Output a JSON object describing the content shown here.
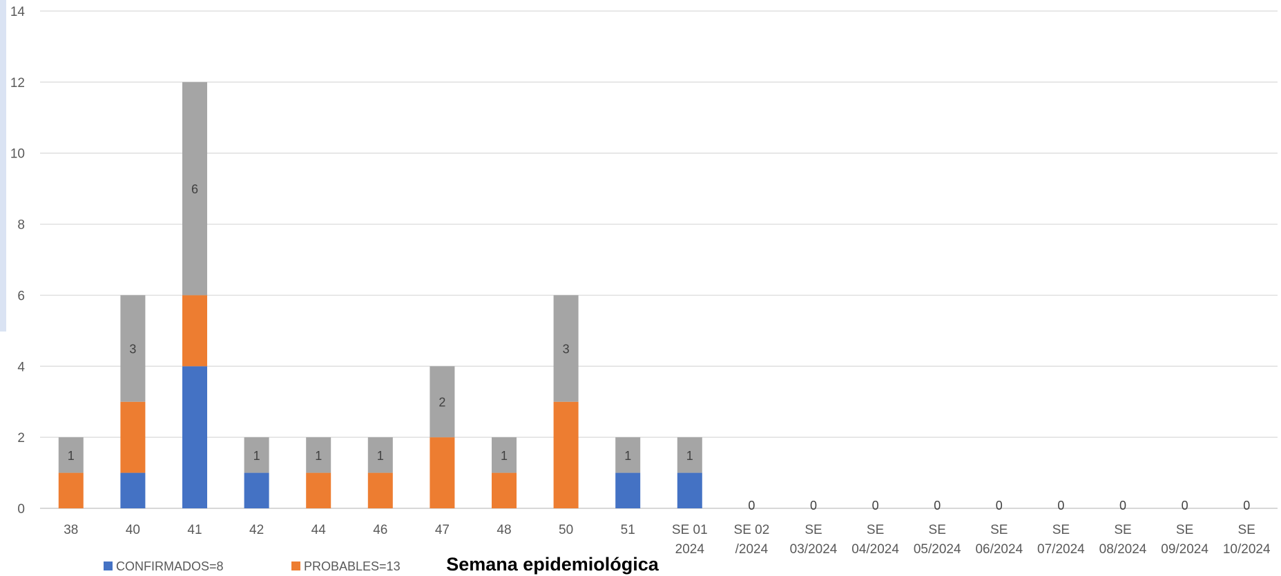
{
  "chart_data": {
    "type": "bar",
    "stacked": true,
    "xlabel": "Semana epidemiológica",
    "ylim": [
      0,
      14
    ],
    "yticks": [
      0,
      2,
      4,
      6,
      8,
      10,
      12,
      14
    ],
    "grid": true,
    "legend_position": "bottom-left",
    "categories": [
      [
        "38"
      ],
      [
        "40"
      ],
      [
        "41"
      ],
      [
        "42"
      ],
      [
        "44"
      ],
      [
        "46"
      ],
      [
        "47"
      ],
      [
        "48"
      ],
      [
        "50"
      ],
      [
        "51"
      ],
      [
        "SE 01",
        "2024"
      ],
      [
        "SE 02",
        "/2024"
      ],
      [
        "SE",
        "03/2024"
      ],
      [
        "SE",
        "04/2024"
      ],
      [
        "SE",
        "05/2024"
      ],
      [
        "SE",
        "06/2024"
      ],
      [
        "SE",
        "07/2024"
      ],
      [
        "SE",
        "08/2024"
      ],
      [
        "SE",
        "09/2024"
      ],
      [
        "SE",
        "10/2024"
      ]
    ],
    "series": [
      {
        "name": "CONFIRMADOS=8",
        "color": "#4472c4",
        "values": [
          0,
          1,
          4,
          1,
          0,
          0,
          0,
          0,
          0,
          1,
          1,
          0,
          0,
          0,
          0,
          0,
          0,
          0,
          0,
          0
        ]
      },
      {
        "name": "PROBABLES=13",
        "color": "#ed7d31",
        "values": [
          1,
          2,
          2,
          0,
          1,
          1,
          2,
          1,
          3,
          0,
          0,
          0,
          0,
          0,
          0,
          0,
          0,
          0,
          0,
          0
        ]
      },
      {
        "color": "#a5a5a5",
        "values": [
          1,
          3,
          6,
          1,
          1,
          1,
          2,
          1,
          3,
          1,
          1,
          0,
          0,
          0,
          0,
          0,
          0,
          0,
          0,
          0
        ]
      }
    ]
  }
}
